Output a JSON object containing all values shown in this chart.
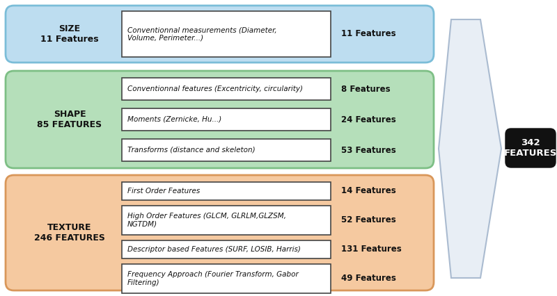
{
  "size_box": {
    "label": "SIZE\n11 Features",
    "color": "#BDDDF0",
    "edge_color": "#7BBDD8",
    "sub_items": [
      {
        "text": "Conventionnal measurements (Diameter,\nVolume, Perimeter...)",
        "features": "11 Features"
      }
    ]
  },
  "shape_box": {
    "label": "SHAPE\n85 FEATURES",
    "color": "#B5DFBA",
    "edge_color": "#7DBF85",
    "sub_items": [
      {
        "text": "Conventionnal features (Excentricity, circularity)",
        "features": "8 Features"
      },
      {
        "text": "Moments (Zernicke, Hu...)",
        "features": "24 Features"
      },
      {
        "text": "Transforms (distance and skeleton)",
        "features": "53 Features"
      }
    ]
  },
  "texture_box": {
    "label": "TEXTURE\n246 FEATURES",
    "color": "#F5C9A0",
    "edge_color": "#D9975A",
    "sub_items": [
      {
        "text": "First Order Features",
        "features": "14 Features"
      },
      {
        "text": "High Order Features (GLCM, GLRLM,GLZSM,\nNGTDM)",
        "features": "52 Features"
      },
      {
        "text": "Descriptor based Features (SURF, LOSIB, Harris)",
        "features": "131 Features"
      },
      {
        "text": "Frequency Approach (Fourier Transform, Gabor\nFiltering)",
        "features": "49 Features"
      }
    ]
  },
  "total_label": "342\nFEATURES",
  "total_bg": "#111111",
  "total_text_color": "#ffffff",
  "white_box_color": "#ffffff",
  "white_box_edge": "#444444",
  "label_text_color": "#111111",
  "background_color": "#ffffff",
  "arrow_face": "#e8eef5",
  "arrow_edge": "#aabbd0"
}
